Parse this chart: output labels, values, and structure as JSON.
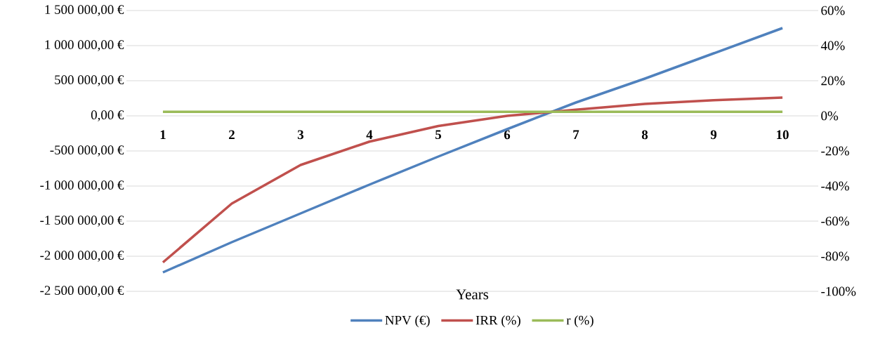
{
  "chart_data": {
    "type": "line",
    "xlabel": "Years",
    "categories": [
      "1",
      "2",
      "3",
      "4",
      "5",
      "6",
      "7",
      "8",
      "9",
      "10"
    ],
    "series": [
      {
        "name": "NPV (€)",
        "color": "#4f81bd",
        "values": [
          -2230000,
          -1800000,
          -1390000,
          -980000,
          -580000,
          -190000,
          190000,
          530000,
          890000,
          1250000
        ]
      },
      {
        "name": "IRR (%)",
        "color": "#c0504d",
        "axis": "y2",
        "values": [
          -83.5,
          -50,
          -28,
          -14.7,
          -5.8,
          0,
          3.5,
          6.8,
          8.9,
          10.4
        ]
      },
      {
        "name": "r (%)",
        "color": "#9bbb59",
        "axis": "y2",
        "values": [
          2.3,
          2.3,
          2.3,
          2.3,
          2.3,
          2.3,
          2.3,
          2.3,
          2.3,
          2.3
        ]
      }
    ],
    "ylim": [
      -2500000,
      1500000
    ],
    "yticks": [
      {
        "value": -2500000,
        "label": "-2 500 000,00 €"
      },
      {
        "value": -2000000,
        "label": "-2 000 000,00 €"
      },
      {
        "value": -1500000,
        "label": "-1 500 000,00 €"
      },
      {
        "value": -1000000,
        "label": "-1 000 000,00 €"
      },
      {
        "value": -500000,
        "label": "-500 000,00 €"
      },
      {
        "value": 0,
        "label": "0,00 €"
      },
      {
        "value": 500000,
        "label": "500 000,00 €"
      },
      {
        "value": 1000000,
        "label": "1 000 000,00 €"
      },
      {
        "value": 1500000,
        "label": "1 500 000,00 €"
      }
    ],
    "y2lim": [
      -100,
      60
    ],
    "y2ticks": [
      {
        "value": -100,
        "label": "-100%"
      },
      {
        "value": -80,
        "label": "-80%"
      },
      {
        "value": -60,
        "label": "-60%"
      },
      {
        "value": -40,
        "label": "-40%"
      },
      {
        "value": -20,
        "label": "-20%"
      },
      {
        "value": 0,
        "label": "0%"
      },
      {
        "value": 20,
        "label": "20%"
      },
      {
        "value": 40,
        "label": "40%"
      },
      {
        "value": 60,
        "label": "60%"
      }
    ],
    "grid": "y",
    "legend": "bottom"
  }
}
